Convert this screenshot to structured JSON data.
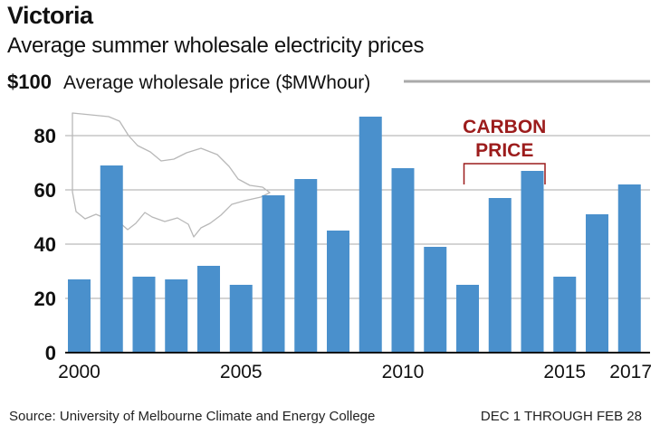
{
  "title": "Victoria",
  "subtitle": "Average summer wholesale electricity prices",
  "source": "Source: University of Melbourne Climate and Energy College",
  "note": "DEC 1 THROUGH FEB 28",
  "colors": {
    "bar": "#4a90cc",
    "annotation": "#9c1c1c",
    "grid": "#aaaaaa",
    "map_outline": "#b8b8b8"
  },
  "chart_data": {
    "type": "bar",
    "ylabel": "Average wholesale price ($MWhour)",
    "ylim": [
      0,
      100
    ],
    "yticks": [
      0,
      20,
      40,
      60,
      80,
      100
    ],
    "ytick_labels": [
      "0",
      "20",
      "40",
      "60",
      "80",
      "$100"
    ],
    "xtick_labels": [
      "2000",
      "2005",
      "2010",
      "2015",
      "2017"
    ],
    "grid": true,
    "categories": [
      2000,
      2001,
      2002,
      2003,
      2004,
      2005,
      2006,
      2007,
      2008,
      2009,
      2010,
      2011,
      2012,
      2013,
      2014,
      2015,
      2016,
      2017
    ],
    "values": [
      27,
      69,
      28,
      27,
      32,
      25,
      58,
      64,
      45,
      87,
      68,
      39,
      25,
      57,
      67,
      28,
      51,
      62
    ],
    "annotations": [
      {
        "text_lines": [
          "CARBON",
          "PRICE"
        ],
        "from": 2012,
        "to": 2014
      }
    ]
  }
}
